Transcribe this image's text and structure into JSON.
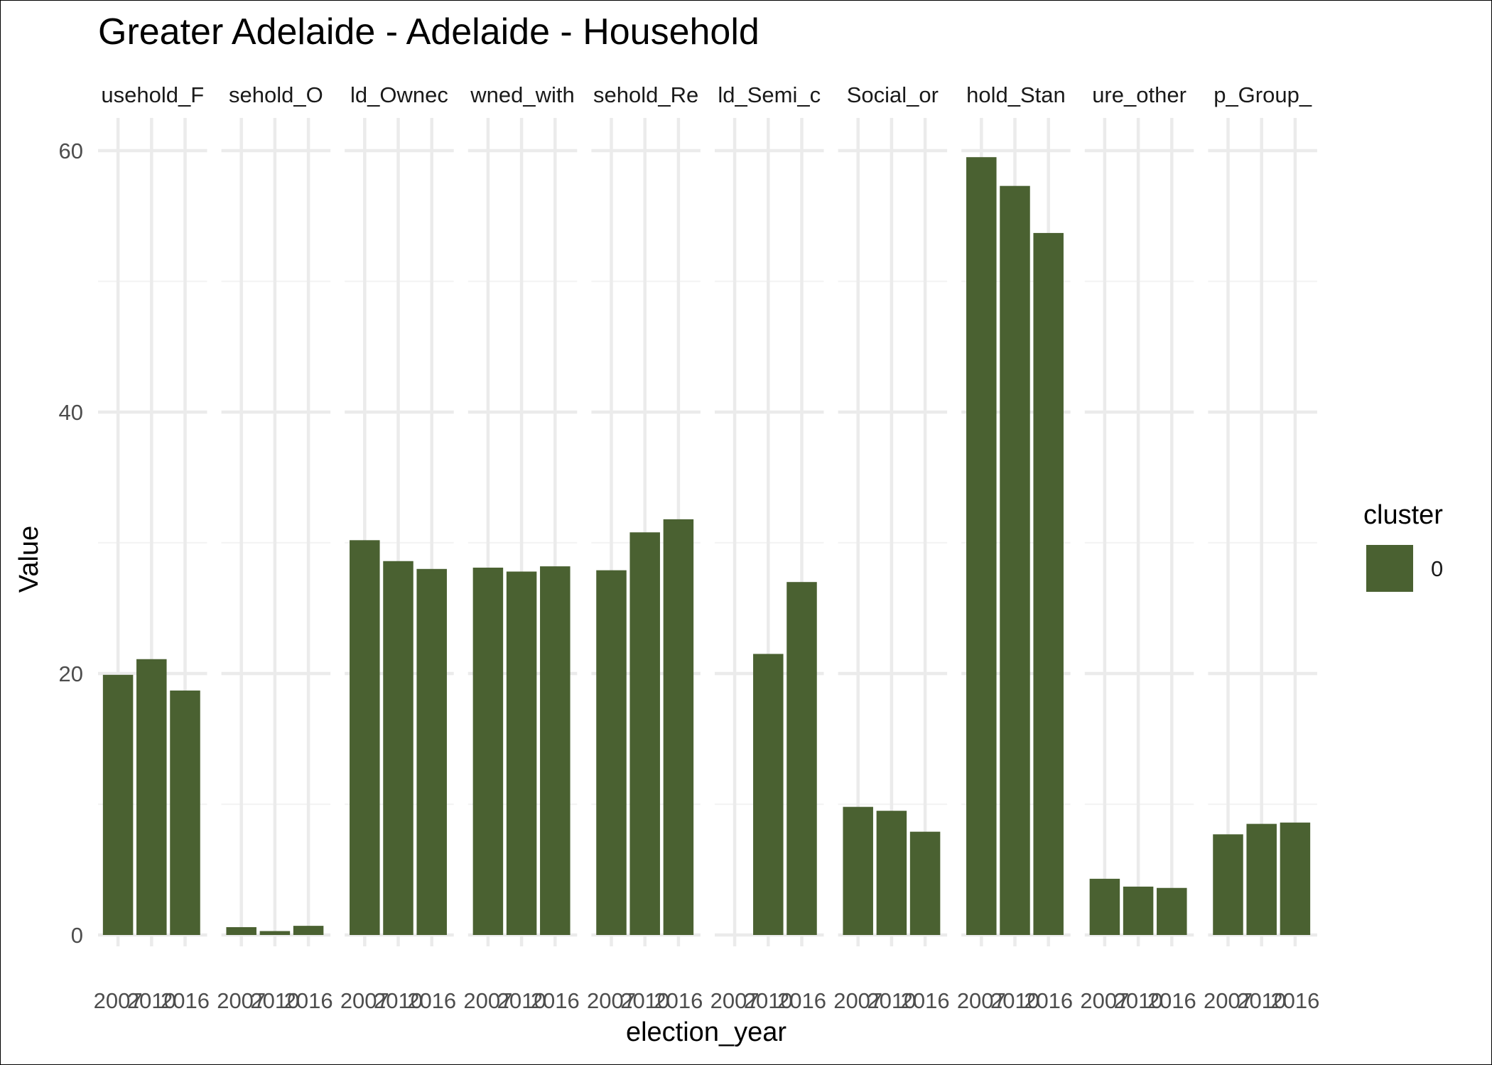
{
  "chart_data": {
    "type": "bar",
    "title": "Greater Adelaide - Adelaide - Household",
    "xlabel": "election_year",
    "ylabel": "Value",
    "ylim": [
      0,
      62.5
    ],
    "y_ticks": [
      0,
      20,
      40,
      60
    ],
    "grid": true,
    "legend": {
      "title": "cluster",
      "placement": "right",
      "entries": [
        {
          "label": "0",
          "color": "#4a6131"
        }
      ]
    },
    "bar_color": "#4a6131",
    "x": [
      "2007",
      "2010",
      "2016"
    ],
    "facets": [
      {
        "label": "usehold_F",
        "values": [
          19.9,
          21.1,
          18.7
        ]
      },
      {
        "label": "sehold_O",
        "values": [
          0.6,
          0.3,
          0.7
        ]
      },
      {
        "label": "ld_Ownec",
        "values": [
          30.2,
          28.6,
          28.0
        ]
      },
      {
        "label": "wned_with",
        "values": [
          28.1,
          27.8,
          28.2
        ]
      },
      {
        "label": "sehold_Re",
        "values": [
          27.9,
          30.8,
          31.8
        ]
      },
      {
        "label": "ld_Semi_c",
        "values": [
          null,
          21.5,
          27.0
        ]
      },
      {
        "label": "Social_or",
        "values": [
          9.8,
          9.5,
          7.9
        ]
      },
      {
        "label": "hold_Stan",
        "values": [
          59.5,
          57.3,
          53.7
        ]
      },
      {
        "label": "ure_other",
        "values": [
          4.3,
          3.7,
          3.6
        ]
      },
      {
        "label": "p_Group_",
        "values": [
          7.7,
          8.5,
          8.6
        ]
      }
    ]
  }
}
